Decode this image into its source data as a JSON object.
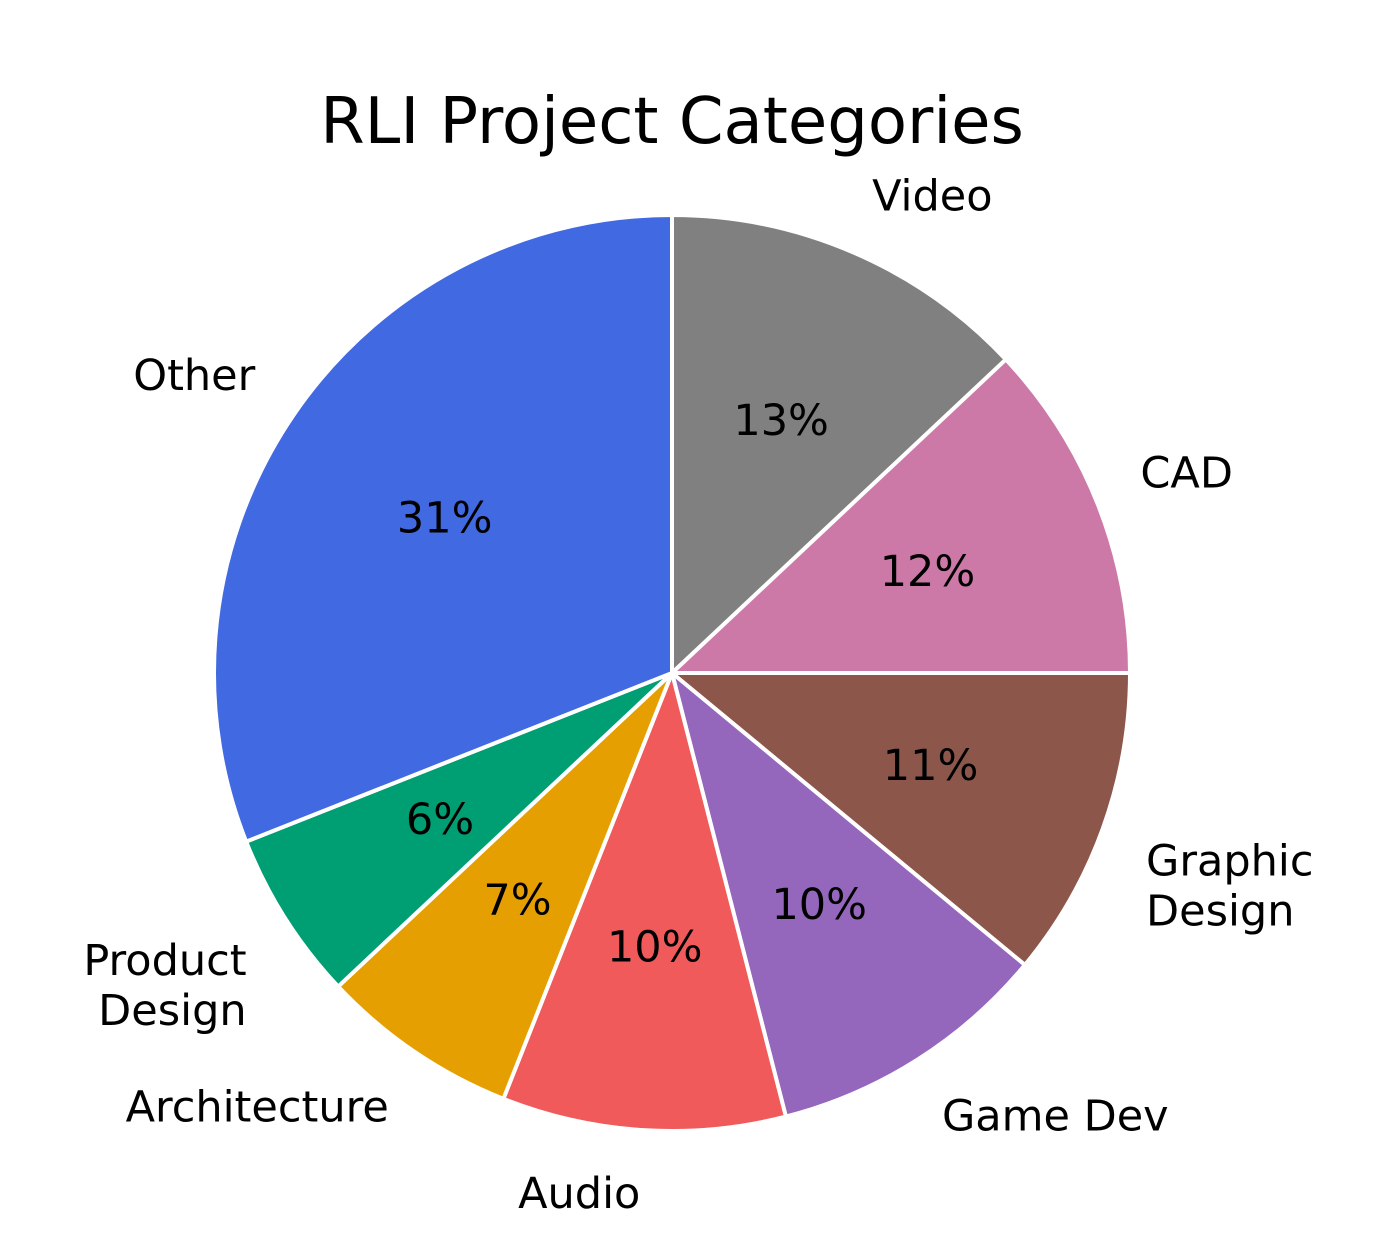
{
  "chart_data": {
    "type": "pie",
    "title": "RLI Project Categories",
    "start_angle_deg": 90,
    "direction": "clockwise",
    "slices": [
      {
        "label": "Video",
        "pct_label": "13%",
        "value": 13,
        "color": "#808080",
        "label_lines": [
          "Video"
        ]
      },
      {
        "label": "CAD",
        "pct_label": "12%",
        "value": 12,
        "color": "#cc79a7",
        "label_lines": [
          "CAD"
        ]
      },
      {
        "label": "Graphic Design",
        "pct_label": "11%",
        "value": 11,
        "color": "#8c564b",
        "label_lines": [
          "Graphic",
          "Design"
        ]
      },
      {
        "label": "Game Dev",
        "pct_label": "10%",
        "value": 10,
        "color": "#9467bd",
        "label_lines": [
          "Game Dev"
        ]
      },
      {
        "label": "Audio",
        "pct_label": "10%",
        "value": 10,
        "color": "#f05a5a",
        "label_lines": [
          "Audio"
        ]
      },
      {
        "label": "Architecture",
        "pct_label": "7%",
        "value": 7,
        "color": "#e69f00",
        "label_lines": [
          "Architecture"
        ]
      },
      {
        "label": "Product Design",
        "pct_label": "6%",
        "value": 6,
        "color": "#009e73",
        "label_lines": [
          "Product",
          "Design"
        ]
      },
      {
        "label": "Other",
        "pct_label": "31%",
        "value": 31,
        "color": "#4169e1",
        "label_lines": [
          "Other"
        ]
      }
    ]
  }
}
